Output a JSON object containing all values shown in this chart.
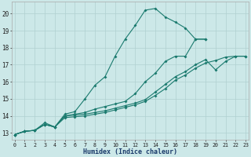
{
  "xlabel": "Humidex (Indice chaleur)",
  "bg_color": "#cce8e8",
  "grid_color": "#b0d0d0",
  "line_color": "#1a7a6e",
  "xlim": [
    -0.3,
    23.3
  ],
  "ylim": [
    12.6,
    20.7
  ],
  "yticks": [
    13,
    14,
    15,
    16,
    17,
    18,
    19,
    20
  ],
  "xticks": [
    0,
    1,
    2,
    3,
    4,
    5,
    6,
    7,
    8,
    9,
    10,
    11,
    12,
    13,
    14,
    15,
    16,
    17,
    18,
    19,
    20,
    21,
    22,
    23
  ],
  "lines": [
    {
      "x": [
        0,
        1,
        2,
        3,
        4,
        5,
        6,
        7,
        8,
        9,
        10,
        11,
        12,
        13,
        14,
        15,
        16,
        17,
        18,
        19
      ],
      "y": [
        12.9,
        13.1,
        13.15,
        13.6,
        13.35,
        14.1,
        14.25,
        15.0,
        15.8,
        16.3,
        17.5,
        18.5,
        19.3,
        20.2,
        20.3,
        19.8,
        19.5,
        19.15,
        18.5,
        18.5
      ]
    },
    {
      "x": [
        0,
        1,
        2,
        3,
        4,
        5,
        6,
        7,
        8,
        9,
        10,
        11,
        12,
        13,
        14,
        15,
        16,
        17,
        18,
        19
      ],
      "y": [
        12.9,
        13.1,
        13.15,
        13.5,
        13.35,
        14.0,
        14.1,
        14.2,
        14.4,
        14.55,
        14.7,
        14.85,
        15.3,
        16.0,
        16.5,
        17.2,
        17.5,
        17.5,
        18.5,
        18.5
      ]
    },
    {
      "x": [
        0,
        1,
        2,
        3,
        4,
        5,
        6,
        7,
        8,
        9,
        10,
        11,
        12,
        13,
        14,
        15,
        16,
        17,
        18,
        19,
        20,
        21,
        22,
        23
      ],
      "y": [
        12.9,
        13.1,
        13.15,
        13.5,
        13.35,
        14.0,
        14.05,
        14.1,
        14.2,
        14.3,
        14.45,
        14.6,
        14.75,
        14.95,
        15.4,
        15.85,
        16.3,
        16.6,
        17.0,
        17.3,
        16.7,
        17.2,
        17.5,
        17.5
      ]
    },
    {
      "x": [
        0,
        1,
        2,
        3,
        4,
        5,
        6,
        7,
        8,
        9,
        10,
        11,
        12,
        13,
        14,
        15,
        16,
        17,
        18,
        19,
        20,
        21,
        22,
        23
      ],
      "y": [
        12.9,
        13.1,
        13.15,
        13.5,
        13.35,
        13.9,
        13.95,
        14.0,
        14.1,
        14.2,
        14.35,
        14.5,
        14.65,
        14.85,
        15.2,
        15.6,
        16.1,
        16.4,
        16.8,
        17.1,
        17.25,
        17.45,
        17.5,
        17.5
      ]
    }
  ]
}
